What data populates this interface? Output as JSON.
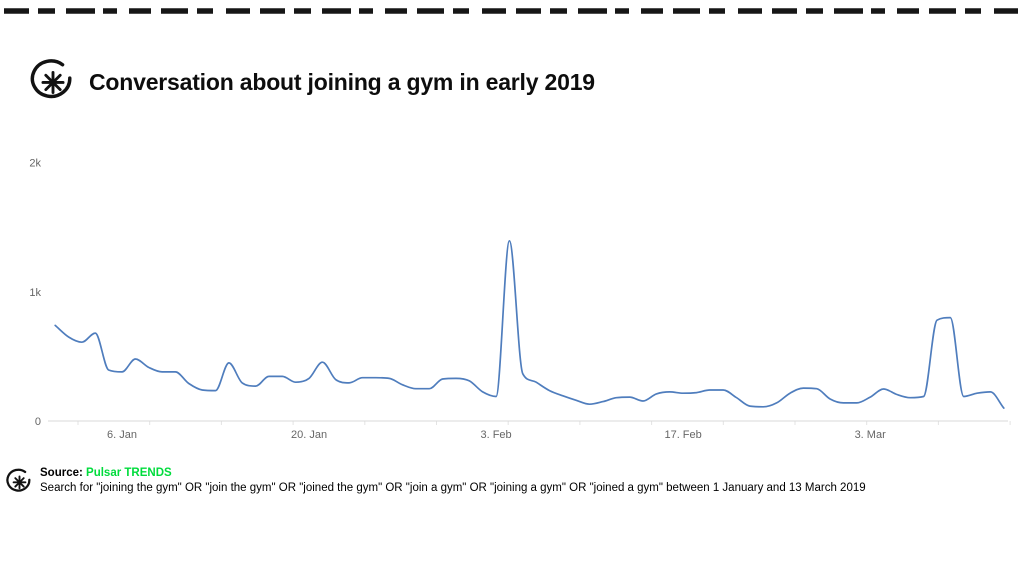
{
  "header": {
    "title": "Conversation about joining a gym in early 2019"
  },
  "footer": {
    "source_label": "Source:",
    "source_name": "Pulsar TRENDS",
    "description": "Search for \"joining the gym\" OR \"join the gym\" OR \"joined the gym\" OR \"join a gym\" OR \"joining a gym\" OR \"joined a gym\" between 1 January and 13 March 2019"
  },
  "icons": {
    "logo": "pulsar-asterisk-logo",
    "top_border": "hand-drawn-dashed-line"
  },
  "colors": {
    "line": "#4f7dbd",
    "axis": "#d9d9d9",
    "tick_label": "#666666",
    "minor_tick": "#e3e3e3",
    "source_green": "#00dc3c",
    "title_text": "#0d0d0d",
    "border_dash": "#161616"
  },
  "chart_data": {
    "type": "line",
    "title": "Conversation about joining a gym in early 2019",
    "xlabel": "",
    "ylabel": "",
    "x_unit": "day",
    "x_start_label": "1 January 2019",
    "x_end_label": "13 March 2019",
    "ylim": [
      0,
      2000
    ],
    "grid": false,
    "legend": false,
    "smooth": true,
    "y_ticks": [
      {
        "value": 0,
        "label": "0"
      },
      {
        "value": 1000,
        "label": "1k"
      },
      {
        "value": 2000,
        "label": "2k"
      }
    ],
    "x_ticks": [
      {
        "day": 5,
        "label": "6. Jan"
      },
      {
        "day": 19,
        "label": "20. Jan"
      },
      {
        "day": 33,
        "label": "3. Feb"
      },
      {
        "day": 47,
        "label": "17. Feb"
      },
      {
        "day": 61,
        "label": "3. Mar"
      }
    ],
    "values": [
      740,
      650,
      610,
      680,
      395,
      380,
      480,
      415,
      380,
      380,
      290,
      240,
      235,
      450,
      295,
      270,
      345,
      345,
      300,
      330,
      455,
      320,
      295,
      335,
      335,
      330,
      280,
      250,
      250,
      325,
      330,
      310,
      225,
      190,
      1395,
      365,
      300,
      235,
      195,
      160,
      130,
      150,
      180,
      185,
      155,
      210,
      225,
      215,
      220,
      240,
      240,
      180,
      115,
      110,
      140,
      215,
      255,
      250,
      170,
      140,
      140,
      185,
      248,
      205,
      180,
      190,
      780,
      800,
      190,
      215,
      225,
      100
    ]
  }
}
